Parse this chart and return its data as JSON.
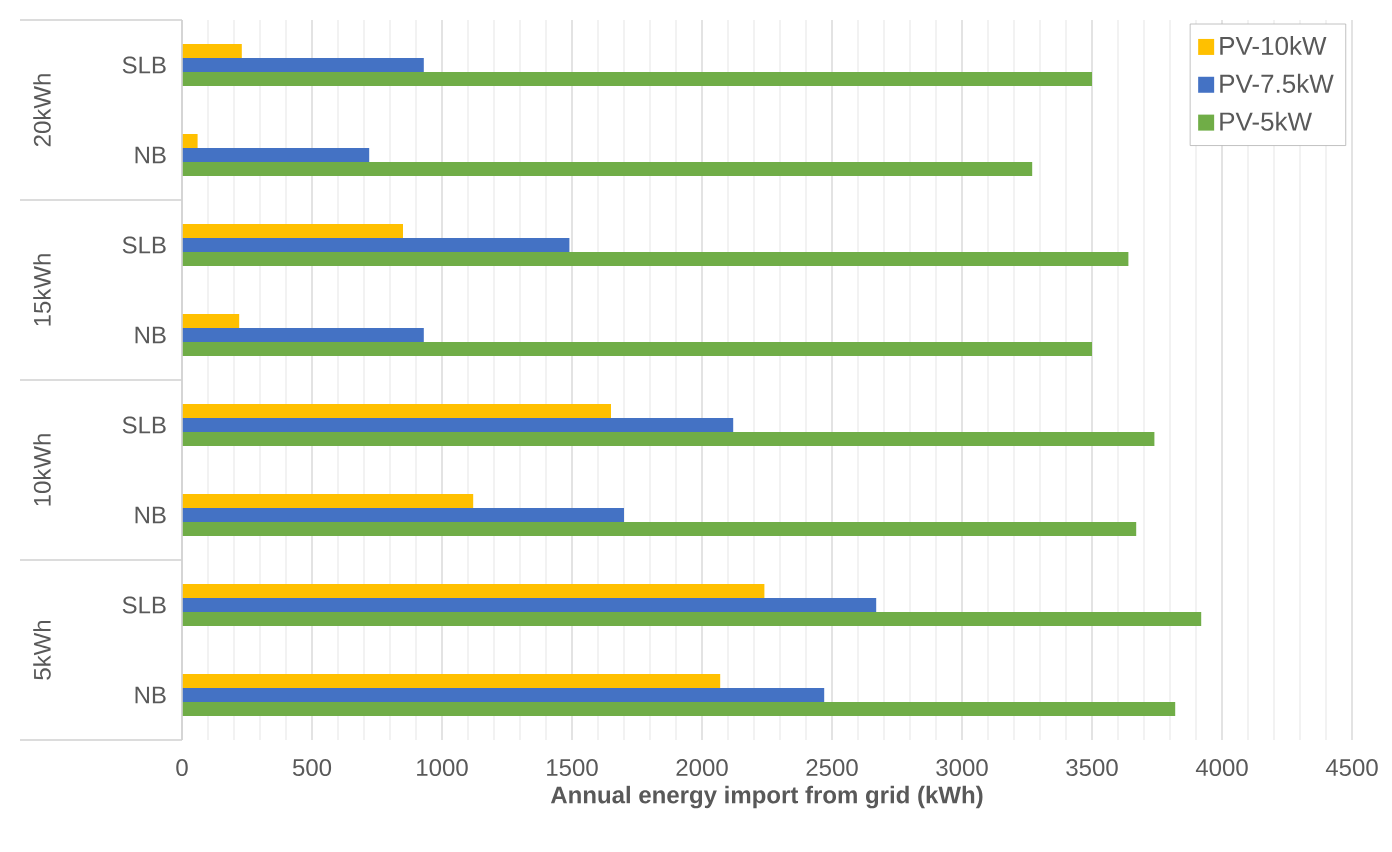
{
  "chart_data": {
    "type": "bar",
    "orientation": "horizontal",
    "xlabel": "Annual energy import from grid (kWh)",
    "categories": [
      "SLB",
      "NB",
      "SLB",
      "NB",
      "SLB",
      "NB",
      "SLB",
      "NB"
    ],
    "annotations": [
      "20kWh",
      "15kWh",
      "10kWh",
      "5kWh"
    ],
    "series": [
      {
        "name": "PV-10kW",
        "color": "#ffc000",
        "values": [
          230,
          60,
          850,
          220,
          1650,
          1120,
          2240,
          2070
        ]
      },
      {
        "name": "PV-7.5kW",
        "color": "#4472c4",
        "values": [
          930,
          720,
          1490,
          930,
          2120,
          1700,
          2670,
          2470
        ]
      },
      {
        "name": "PV-5kW",
        "color": "#70ad47",
        "values": [
          3500,
          3270,
          3640,
          3500,
          3740,
          3670,
          3920,
          3820
        ]
      }
    ],
    "xlim": [
      0,
      4500
    ],
    "xticks": [
      0,
      500,
      1000,
      1500,
      2000,
      2500,
      3000,
      3500,
      4000,
      4500
    ],
    "grid": "x",
    "legend": "top right"
  }
}
